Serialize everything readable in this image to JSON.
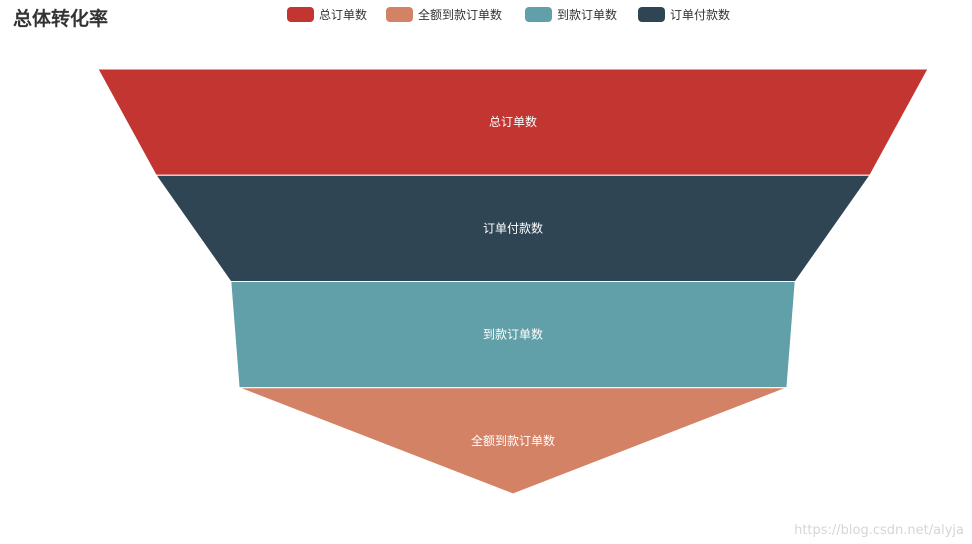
{
  "title": "总体转化率",
  "legend": [
    {
      "label": "总订单数",
      "color": "#c23531"
    },
    {
      "label": "全额到款订单数",
      "color": "#d48265"
    },
    {
      "label": "到款订单数",
      "color": "#61a0a8"
    },
    {
      "label": "订单付款数",
      "color": "#2f4554"
    }
  ],
  "watermark": "https://blog.csdn.net/alyja",
  "chart_data": {
    "type": "funnel",
    "sort": "descending",
    "label_position": "inside",
    "legend_placement": "top-center",
    "series": [
      {
        "name": "总订单数",
        "value": 100,
        "color": "#c23531"
      },
      {
        "name": "订单付款数",
        "value": 86,
        "color": "#2f4554"
      },
      {
        "name": "到款订单数",
        "value": 68,
        "color": "#61a0a8"
      },
      {
        "name": "全额到款订单数",
        "value": 66,
        "color": "#d48265"
      }
    ]
  }
}
